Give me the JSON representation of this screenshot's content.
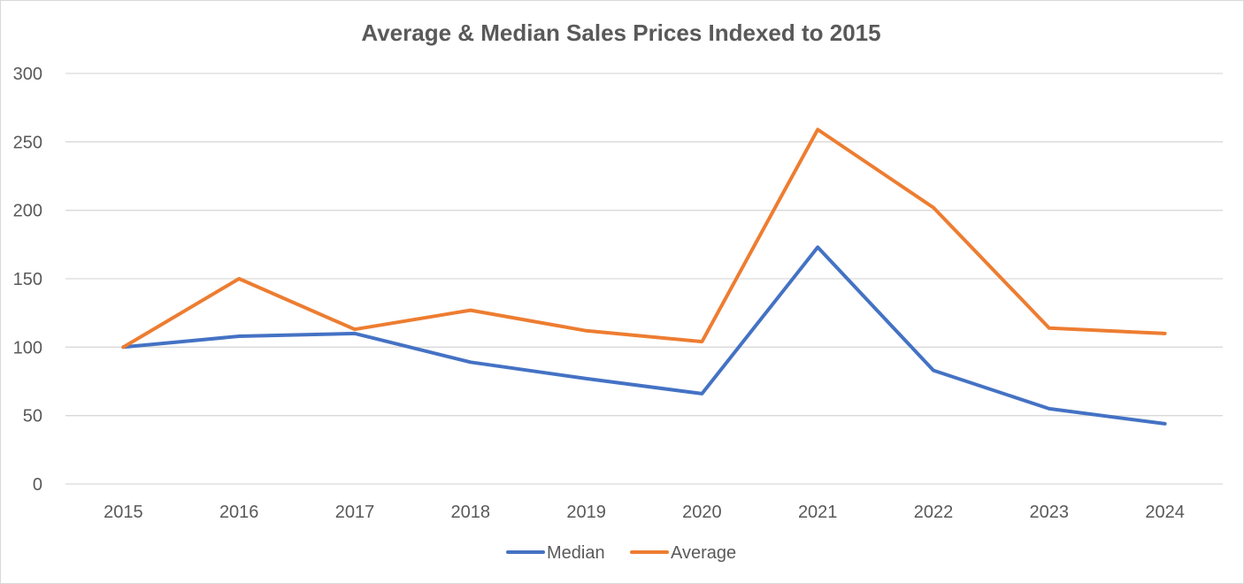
{
  "chart_data": {
    "type": "line",
    "title": "Average & Median Sales Prices Indexed to 2015",
    "xlabel": "",
    "ylabel": "",
    "categories": [
      "2015",
      "2016",
      "2017",
      "2018",
      "2019",
      "2020",
      "2021",
      "2022",
      "2023",
      "2024"
    ],
    "y_ticks": [
      "0",
      "50",
      "100",
      "150",
      "200",
      "250",
      "300"
    ],
    "ylim": [
      0,
      300
    ],
    "grid": true,
    "legend_position": "bottom",
    "series": [
      {
        "name": "Median",
        "color": "#4472C4",
        "values": [
          100,
          108,
          110,
          89,
          77,
          66,
          173,
          83,
          55,
          44
        ]
      },
      {
        "name": "Average",
        "color": "#ED7D31",
        "values": [
          100,
          150,
          113,
          127,
          112,
          104,
          259,
          202,
          114,
          110
        ]
      }
    ]
  }
}
